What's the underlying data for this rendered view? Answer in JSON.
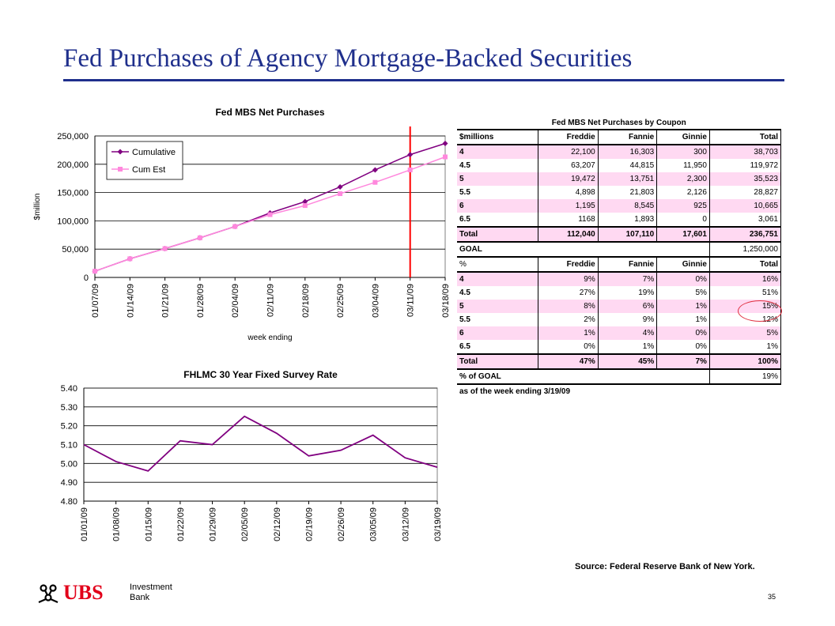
{
  "page": {
    "title": "Fed Purchases of Agency Mortgage-Backed Securities",
    "source": "Source: Federal Reserve Bank of New York.",
    "page_number": "35",
    "logo": {
      "name": "UBS",
      "line1": "Investment",
      "line2": "Bank"
    }
  },
  "chart_data": [
    {
      "type": "line",
      "title": "Fed MBS Net Purchases",
      "xlabel": "week ending",
      "ylabel": "$million",
      "categories": [
        "01/07/09",
        "01/14/09",
        "01/21/09",
        "01/28/09",
        "02/04/09",
        "02/11/09",
        "02/18/09",
        "02/25/09",
        "03/04/09",
        "03/11/09",
        "03/18/09"
      ],
      "ylim": [
        0,
        250000
      ],
      "yticks": [
        "0",
        "50,000",
        "100,000",
        "150,000",
        "200,000",
        "250,000"
      ],
      "yticks_values": [
        0,
        50000,
        100000,
        150000,
        200000,
        250000
      ],
      "series": [
        {
          "name": "Cumulative",
          "color": "#800080",
          "values": [
            11000,
            33000,
            51000,
            70000,
            90000,
            114000,
            134000,
            160000,
            190000,
            217000,
            236751
          ]
        },
        {
          "name": "Cum Est",
          "color": "#ff88dd",
          "values": [
            11000,
            33000,
            51000,
            70000,
            90000,
            111000,
            127000,
            148000,
            168000,
            190000,
            213000
          ]
        }
      ],
      "marker_line": {
        "category": "03/11/09",
        "color": "#ff0000"
      },
      "legend": "top-left",
      "grid": true
    },
    {
      "type": "line",
      "title": "FHLMC 30 Year Fixed Survey Rate",
      "categories": [
        "01/01/09",
        "01/08/09",
        "01/15/09",
        "01/22/09",
        "01/29/09",
        "02/05/09",
        "02/12/09",
        "02/19/09",
        "02/26/09",
        "03/05/09",
        "03/12/09",
        "03/19/09"
      ],
      "ylim": [
        4.8,
        5.4
      ],
      "yticks": [
        "4.80",
        "4.90",
        "5.00",
        "5.10",
        "5.20",
        "5.30",
        "5.40"
      ],
      "yticks_values": [
        4.8,
        4.9,
        5.0,
        5.1,
        5.2,
        5.3,
        5.4
      ],
      "series": [
        {
          "color": "#800080",
          "values": [
            5.1,
            5.01,
            4.96,
            5.12,
            5.1,
            5.25,
            5.16,
            5.04,
            5.07,
            5.15,
            5.03,
            4.98
          ]
        }
      ],
      "grid": true
    }
  ],
  "table": {
    "caption": "Fed MBS Net Purchases by Coupon",
    "header1": [
      "$millions",
      "Freddie",
      "Fannie",
      "Ginnie",
      "Total"
    ],
    "rows1": [
      [
        "4",
        "22,100",
        "16,303",
        "300",
        "38,703"
      ],
      [
        "4.5",
        "63,207",
        "44,815",
        "11,950",
        "119,972"
      ],
      [
        "5",
        "19,472",
        "13,751",
        "2,300",
        "35,523"
      ],
      [
        "5.5",
        "4,898",
        "21,803",
        "2,126",
        "28,827"
      ],
      [
        "6",
        "1,195",
        "8,545",
        "925",
        "10,665"
      ],
      [
        "6.5",
        "1168",
        "1,893",
        "0",
        "3,061"
      ]
    ],
    "total1": [
      "Total",
      "112,040",
      "107,110",
      "17,601",
      "236,751"
    ],
    "goal": [
      "GOAL",
      "1,250,000"
    ],
    "header2": [
      "%",
      "Freddie",
      "Fannie",
      "Ginnie",
      "Total"
    ],
    "rows2": [
      [
        "4",
        "9%",
        "7%",
        "0%",
        "16%"
      ],
      [
        "4.5",
        "27%",
        "19%",
        "5%",
        "51%"
      ],
      [
        "5",
        "8%",
        "6%",
        "1%",
        "15%"
      ],
      [
        "5.5",
        "2%",
        "9%",
        "1%",
        "12%"
      ],
      [
        "6",
        "1%",
        "4%",
        "0%",
        "5%"
      ],
      [
        "6.5",
        "0%",
        "1%",
        "0%",
        "1%"
      ]
    ],
    "total2": [
      "Total",
      "47%",
      "45%",
      "7%",
      "100%"
    ],
    "pct_goal": [
      "% of GOAL",
      "19%"
    ],
    "note": "as of the week ending 3/19/09"
  }
}
